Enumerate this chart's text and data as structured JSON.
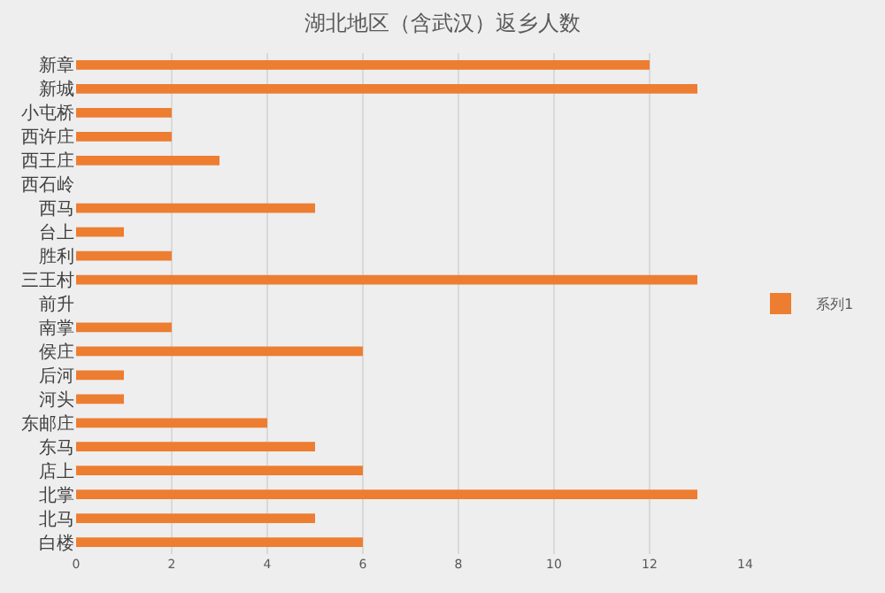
{
  "chart_data": {
    "type": "bar",
    "orientation": "horizontal",
    "title": "湖北地区（含武汉）返乡人数",
    "categories": [
      "新章",
      "新城",
      "小屯桥",
      "西许庄",
      "西王庄",
      "西石岭",
      "西马",
      "台上",
      "胜利",
      "三王村",
      "前升",
      "南掌",
      "侯庄",
      "后河",
      "河头",
      "东邮庄",
      "东马",
      "店上",
      "北掌",
      "北马",
      "白楼"
    ],
    "series": [
      {
        "name": "系列1",
        "color": "#ed7d31",
        "values": [
          12,
          13,
          2,
          2,
          3,
          0,
          5,
          1,
          2,
          13,
          0,
          2,
          6,
          1,
          1,
          4,
          5,
          6,
          13,
          5,
          6
        ]
      }
    ],
    "xlim": [
      0,
      14
    ],
    "xticks": [
      0,
      2,
      4,
      6,
      8,
      10,
      12,
      14
    ],
    "grid": "x",
    "legend": "right"
  }
}
